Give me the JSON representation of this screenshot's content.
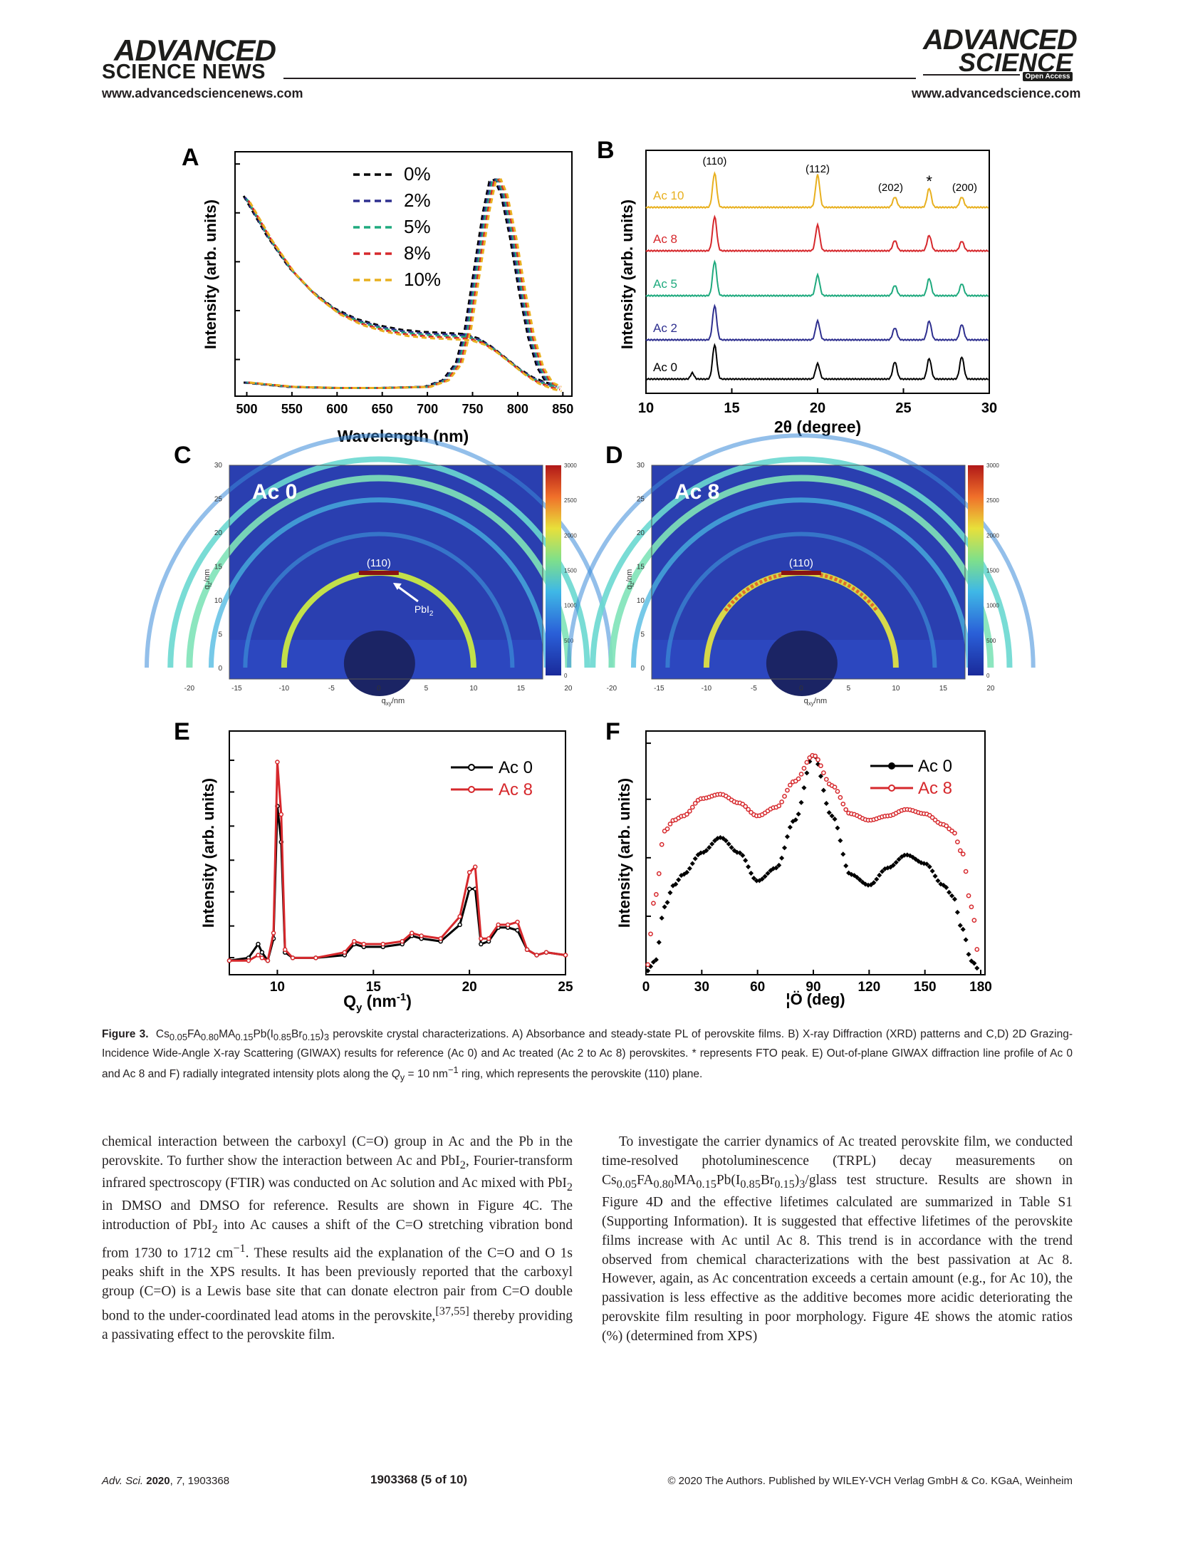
{
  "header": {
    "left_logo_top": "ADVANCED",
    "left_logo_bottom": "SCIENCE NEWS",
    "left_url": "www.advancedsciencenews.com",
    "right_logo_top": "ADVANCED",
    "right_logo_bottom": "SCIENCE",
    "right_logo_badge": "Open Access",
    "right_url": "www.advancedscience.com"
  },
  "panels": {
    "A": {
      "letter": "A",
      "ylabel": "Intensity (arb. units)",
      "xlabel": "Wavelength (nm)",
      "xticks": [
        "500",
        "550",
        "600",
        "650",
        "700",
        "750",
        "800",
        "850"
      ],
      "legend": [
        "0%",
        "2%",
        "5%",
        "8%",
        "10%"
      ]
    },
    "B": {
      "letter": "B",
      "ylabel": "Intensity (arb. units)",
      "xlabel": "2θ (degree)",
      "xticks": [
        "10",
        "15",
        "20",
        "25",
        "30"
      ],
      "peaks": [
        "(110)",
        "(112)",
        "(202)",
        "*",
        "(200)"
      ],
      "traces": [
        "Ac 10",
        "Ac 8",
        "Ac 5",
        "Ac 2",
        "Ac 0"
      ]
    },
    "C": {
      "letter": "C",
      "label": "Ac 0",
      "ring": "(110)",
      "arrow": "PbI",
      "arrow_sub": "2",
      "ylabel": "q",
      "ylabel_sub": "z",
      "ylabel_unit": "/nm",
      "xlabel": "q",
      "xlabel_sub": "xy",
      "xlabel_unit": "/nm",
      "xticks": [
        "-20",
        "-15",
        "-10",
        "-5",
        "0",
        "5",
        "10",
        "15",
        "20"
      ],
      "yticks": [
        "0",
        "5",
        "10",
        "15",
        "20",
        "25",
        "30"
      ],
      "cbar": [
        "0",
        "500",
        "1000",
        "1500",
        "2000",
        "2500",
        "3000"
      ]
    },
    "D": {
      "letter": "D",
      "label": "Ac 8",
      "ring": "(110)",
      "ylabel": "q",
      "ylabel_sub": "z",
      "ylabel_unit": "/nm",
      "xlabel": "q",
      "xlabel_sub": "xy",
      "xlabel_unit": "/nm",
      "xticks": [
        "-20",
        "-15",
        "-10",
        "-5",
        "0",
        "5",
        "10",
        "15",
        "20"
      ],
      "yticks": [
        "0",
        "5",
        "10",
        "15",
        "20",
        "25",
        "30"
      ],
      "cbar": [
        "0",
        "500",
        "1000",
        "1500",
        "2000",
        "2500",
        "3000"
      ]
    },
    "E": {
      "letter": "E",
      "ylabel": "Intensity (arb. units)",
      "xlabel": "Q",
      "xlabel_sub": "y",
      "xlabel_unit": " (nm",
      "xlabel_sup": "-1",
      "xlabel_end": ")",
      "xticks": [
        "10",
        "15",
        "20",
        "25"
      ],
      "legend": [
        "Ac 0",
        "Ac 8"
      ]
    },
    "F": {
      "letter": "F",
      "ylabel": "Intensity (arb. units)",
      "xlabel": "¦Ö (deg)",
      "xticks": [
        "0",
        "30",
        "60",
        "90",
        "120",
        "150",
        "180"
      ],
      "legend": [
        "Ac 0",
        "Ac 8"
      ]
    }
  },
  "chart_data": [
    {
      "type": "line",
      "panel": "A",
      "xlabel": "Wavelength (nm)",
      "ylabel": "Intensity (arb. units)",
      "xlim": [
        500,
        850
      ],
      "series": [
        {
          "name": "0%"
        },
        {
          "name": "2%"
        },
        {
          "name": "5%"
        },
        {
          "name": "8%"
        },
        {
          "name": "10%"
        }
      ],
      "absorbance": {
        "x": [
          500,
          525,
          550,
          575,
          600,
          625,
          650,
          675,
          700,
          725,
          745,
          760,
          775,
          790,
          805,
          820,
          835,
          845
        ],
        "y": [
          0.88,
          0.7,
          0.55,
          0.44,
          0.36,
          0.31,
          0.28,
          0.26,
          0.25,
          0.245,
          0.24,
          0.22,
          0.18,
          0.13,
          0.08,
          0.04,
          0.015,
          0.005
        ]
      },
      "pl": {
        "x": [
          500,
          550,
          600,
          650,
          700,
          720,
          735,
          745,
          755,
          765,
          772,
          778,
          785,
          795,
          805,
          815,
          825,
          835,
          845
        ],
        "y": [
          0.03,
          0.01,
          0.005,
          0.005,
          0.01,
          0.04,
          0.12,
          0.28,
          0.55,
          0.82,
          0.96,
          0.97,
          0.9,
          0.7,
          0.45,
          0.24,
          0.1,
          0.03,
          0.01
        ]
      },
      "colors": [
        "#000000",
        "#2e2f8f",
        "#1faa7e",
        "#d6282c",
        "#e8b01f"
      ]
    },
    {
      "type": "line",
      "panel": "B",
      "xlabel": "2θ (degree)",
      "ylabel": "Intensity (arb. units)",
      "xlim": [
        10,
        30
      ],
      "peaks": [
        {
          "x": 14.0,
          "label": "(110)"
        },
        {
          "x": 20.0,
          "label": "(112)"
        },
        {
          "x": 24.5,
          "label": "(202)"
        },
        {
          "x": 26.5,
          "label": "*"
        },
        {
          "x": 28.4,
          "label": "(200)"
        }
      ],
      "series": [
        {
          "name": "Ac 0",
          "color": "#000000",
          "heights": [
            1.0,
            0.45,
            0.5,
            0.6,
            0.65
          ],
          "extra": [
            {
              "x": 12.7,
              "h": 0.18
            }
          ]
        },
        {
          "name": "Ac 2",
          "color": "#2e2f8f",
          "heights": [
            1.0,
            0.55,
            0.35,
            0.55,
            0.45
          ]
        },
        {
          "name": "Ac 5",
          "color": "#1faa7e",
          "heights": [
            1.0,
            0.6,
            0.3,
            0.5,
            0.35
          ]
        },
        {
          "name": "Ac 8",
          "color": "#d6282c",
          "heights": [
            1.0,
            0.75,
            0.3,
            0.45,
            0.28
          ]
        },
        {
          "name": "Ac 10",
          "color": "#e8b01f",
          "heights": [
            1.0,
            0.95,
            0.3,
            0.55,
            0.3
          ]
        }
      ]
    },
    {
      "type": "line",
      "panel": "E",
      "xlabel": "Qy (nm-1)",
      "ylabel": "Intensity (arb. units)",
      "xlim": [
        7.5,
        25
      ],
      "series": [
        {
          "name": "Ac 0",
          "color": "#000000",
          "x": [
            7.5,
            8.5,
            9.0,
            9.2,
            9.5,
            9.8,
            10.0,
            10.2,
            10.4,
            10.8,
            12,
            13.5,
            14.0,
            14.5,
            15.5,
            16.5,
            17.0,
            17.5,
            18.5,
            19.5,
            20.0,
            20.3,
            20.6,
            21.0,
            21.5,
            22.0,
            22.5,
            23.0,
            23.5,
            24.0,
            25.0
          ],
          "y": [
            0.02,
            0.03,
            0.08,
            0.05,
            0.02,
            0.1,
            0.58,
            0.45,
            0.05,
            0.03,
            0.03,
            0.04,
            0.08,
            0.07,
            0.07,
            0.08,
            0.11,
            0.1,
            0.09,
            0.15,
            0.28,
            0.28,
            0.08,
            0.09,
            0.14,
            0.14,
            0.13,
            0.06,
            0.04,
            0.05,
            0.04
          ]
        },
        {
          "name": "Ac 8",
          "color": "#d6282c",
          "x": [
            7.5,
            8.5,
            9.0,
            9.2,
            9.5,
            9.8,
            10.0,
            10.2,
            10.4,
            10.8,
            12,
            13.5,
            14.0,
            14.5,
            15.5,
            16.5,
            17.0,
            17.5,
            18.5,
            19.5,
            20.0,
            20.3,
            20.6,
            21.0,
            21.5,
            22.0,
            22.5,
            23.0,
            23.5,
            24.0,
            25.0
          ],
          "y": [
            0.02,
            0.02,
            0.04,
            0.03,
            0.02,
            0.12,
            0.74,
            0.55,
            0.06,
            0.03,
            0.03,
            0.05,
            0.09,
            0.08,
            0.08,
            0.09,
            0.12,
            0.11,
            0.1,
            0.18,
            0.34,
            0.36,
            0.1,
            0.1,
            0.15,
            0.15,
            0.16,
            0.06,
            0.04,
            0.05,
            0.04
          ]
        }
      ]
    },
    {
      "type": "scatter",
      "panel": "F",
      "xlabel": "¦Ö (deg)",
      "ylabel": "Intensity (arb. units)",
      "xlim": [
        0,
        180
      ],
      "series": [
        {
          "name": "Ac 0",
          "color": "#000000",
          "x": [
            0,
            5,
            10,
            15,
            20,
            30,
            40,
            50,
            60,
            70,
            80,
            90,
            100,
            110,
            120,
            130,
            140,
            150,
            160,
            165,
            170,
            175,
            180
          ],
          "y": [
            0.0,
            0.05,
            0.3,
            0.4,
            0.45,
            0.55,
            0.62,
            0.55,
            0.42,
            0.48,
            0.7,
            1.0,
            0.72,
            0.45,
            0.4,
            0.48,
            0.54,
            0.5,
            0.4,
            0.35,
            0.2,
            0.05,
            0.0
          ]
        },
        {
          "name": "Ac 8",
          "color": "#d6282c",
          "x": [
            0,
            5,
            10,
            15,
            20,
            30,
            40,
            50,
            60,
            70,
            80,
            90,
            100,
            110,
            120,
            130,
            140,
            150,
            160,
            165,
            170,
            175,
            180
          ],
          "y": [
            0.0,
            0.35,
            0.65,
            0.7,
            0.72,
            0.8,
            0.82,
            0.78,
            0.72,
            0.76,
            0.88,
            1.0,
            0.86,
            0.73,
            0.7,
            0.72,
            0.75,
            0.73,
            0.68,
            0.65,
            0.55,
            0.3,
            0.0
          ]
        }
      ]
    }
  ],
  "caption": {
    "label": "Figure 3.",
    "line1_a": "Cs",
    "s1": "0.05",
    "t1": "FA",
    "s2": "0.80",
    "t2": "MA",
    "s3": "0.15",
    "t3": "Pb(I",
    "s4": "0.85",
    "t4": "Br",
    "s5": "0.15",
    "t5": ")",
    "s6": "3",
    "line1_rest": " perovskite crystal characterizations. A) Absorbance and steady-state PL of perovskite films. B) X-ray Diffraction (XRD) patterns and C,D) 2D Grazing-Incidence Wide-Angle X-ray Scattering (GIWAX) results for reference (Ac 0) and Ac treated (Ac 2 to Ac 8) perovskites. * represents FTO peak. E) Out-of-plane GIWAX diffraction line profile of Ac 0 and Ac 8 and F) radially integrated intensity plots along the ",
    "q": "Q",
    "q_sub": "y",
    "q_rest": " = 10 nm",
    "q_sup": "−1",
    "q_end": " ring, which represents the perovskite (110) plane."
  },
  "body": {
    "left": [
      "chemical interaction between the carboxyl (C=O) group in Ac and the Pb in the perovskite. To further show the interaction between Ac and PbI",
      "2",
      ", Fourier-transform infrared spectroscopy (FTIR) was conducted on Ac solution and Ac mixed with PbI",
      "2",
      " in DMSO and DMSO for reference. Results are shown in Figure 4C. The introduction of PbI",
      "2",
      " into Ac causes a shift of the C=O stretching vibration bond from 1730 to 1712 cm",
      "−1",
      ". These results aid the explanation of the C=O and O 1s peaks shift in the XPS results. It has been previously reported that the carboxyl group (C=O) is a Lewis base site that can donate electron pair from C=O double bond to the under-coordinated lead atoms in the perovskite,",
      "[37,55]",
      " thereby providing a passivating effect to the perovskite film."
    ],
    "right": [
      "To investigate the carrier dynamics of Ac treated perovskite film, we conducted time-resolved photoluminescence (TRPL) decay measurements on Cs",
      "0.05",
      "FA",
      "0.80",
      "MA",
      "0.15",
      "Pb(I",
      "0.85",
      "Br",
      "0.15",
      ")",
      "3",
      "/glass test structure. Results are shown in Figure 4D and the effective lifetimes calculated are summarized in Table S1 (Supporting Information). It is suggested that effective lifetimes of the perovskite films increase with Ac until Ac 8. This trend is in accordance with the trend observed from chemical characterizations with the best passivation at Ac 8. However, again, as Ac concentration exceeds a certain amount (e.g., for Ac 10), the passivation is less effective as the additive becomes more acidic deteriorating the perovskite film resulting in poor morphology. Figure 4E shows the atomic ratios (%) (determined from XPS)"
    ]
  },
  "footer": {
    "journal": "Adv. Sci.",
    "year": "2020",
    "vol": "7",
    "art": ", 1903368",
    "page": "1903368  (5 of 10)",
    "copyright": "© 2020 The Authors. Published by WILEY-VCH Verlag GmbH & Co. KGaA, Weinheim"
  }
}
